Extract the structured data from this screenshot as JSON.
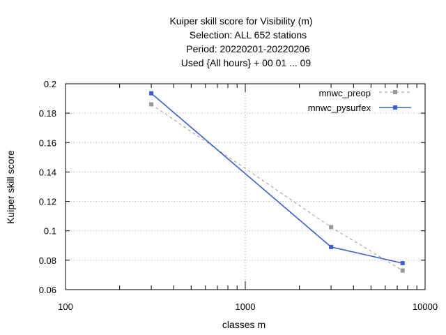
{
  "chart_data": {
    "type": "line",
    "title_lines": [
      "Kuiper skill score  for Visibility (m)",
      "Selection: ALL    652 stations",
      "Period: 20220201-20220206",
      "Used {All hours} + 00 01 ... 09"
    ],
    "xlabel": "classes m",
    "ylabel": "Kuiper skill score",
    "x_scale": "log",
    "xlim": [
      100,
      10000
    ],
    "ylim": [
      0.06,
      0.2
    ],
    "x_ticks": [
      100,
      1000,
      10000
    ],
    "x_tick_labels": [
      "100",
      "1000",
      "10000"
    ],
    "y_ticks": [
      0.06,
      0.08,
      0.1,
      0.12,
      0.14,
      0.16,
      0.18,
      0.2
    ],
    "y_tick_labels": [
      "0.06",
      "0.08",
      "0.1",
      "0.12",
      "0.14",
      "0.16",
      "0.18",
      "0.2"
    ],
    "grid": true,
    "legend_position": "top-right",
    "series": [
      {
        "name": "mnwc_preop",
        "color": "#999999",
        "style": "dashed",
        "x": [
          300,
          3000,
          7500
        ],
        "y": [
          0.186,
          0.1025,
          0.073
        ]
      },
      {
        "name": "mnwc_pysurfex",
        "color": "#3a5fcd",
        "style": "solid",
        "x": [
          300,
          3000,
          7500
        ],
        "y": [
          0.1935,
          0.089,
          0.078
        ]
      }
    ]
  }
}
